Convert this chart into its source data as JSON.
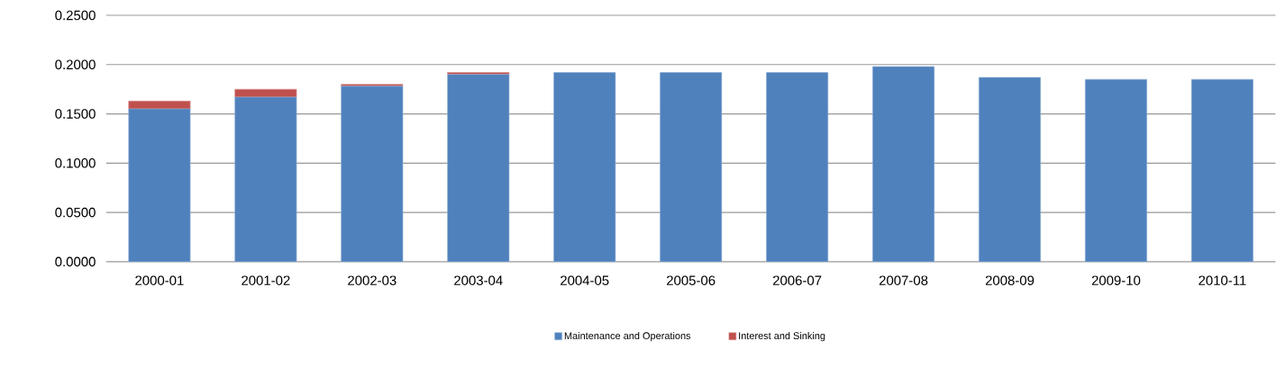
{
  "chart_data": {
    "type": "bar",
    "stacked": true,
    "categories": [
      "2000-01",
      "2001-02",
      "2002-03",
      "2003-04",
      "2004-05",
      "2005-06",
      "2006-07",
      "2007-08",
      "2008-09",
      "2009-10",
      "2010-11"
    ],
    "series": [
      {
        "name": "Maintenance and Operations",
        "color": "#4f81bd",
        "values": [
          0.155,
          0.167,
          0.178,
          0.19,
          0.192,
          0.192,
          0.192,
          0.198,
          0.187,
          0.185,
          0.185
        ]
      },
      {
        "name": "Interest and Sinking",
        "color": "#c0504d",
        "values": [
          0.008,
          0.008,
          0.002,
          0.002,
          null,
          null,
          null,
          null,
          null,
          null,
          null
        ]
      }
    ],
    "ylim": [
      0,
      0.25
    ],
    "yticks": [
      {
        "value": 0,
        "label": "0.0000"
      },
      {
        "value": 0.05,
        "label": "0.0500"
      },
      {
        "value": 0.1,
        "label": "0.1000"
      },
      {
        "value": 0.15,
        "label": "0.1500"
      },
      {
        "value": 0.2,
        "label": "0.2000"
      },
      {
        "value": 0.25,
        "label": "0.2500"
      }
    ],
    "grid": "y",
    "legend": "bottom"
  }
}
